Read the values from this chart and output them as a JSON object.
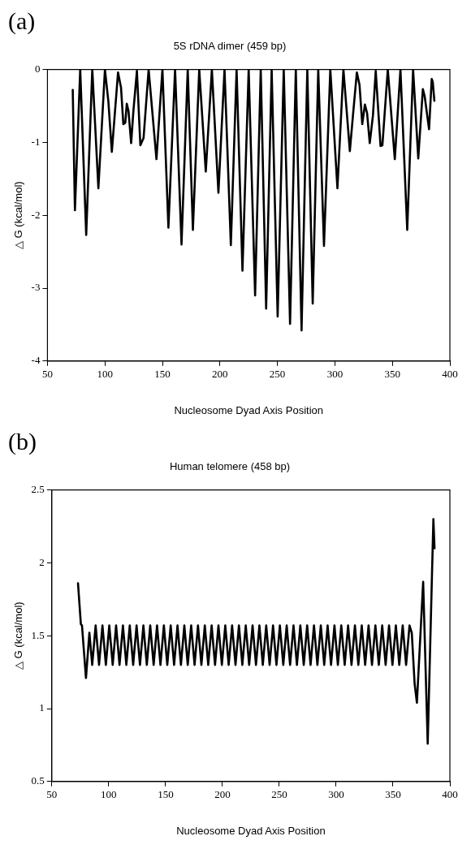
{
  "chart_data": [
    {
      "type": "line",
      "title": "5S rDNA dimer (459 bp)",
      "xlabel": "Nucleosome Dyad Axis Position",
      "ylabel": "△ G (kcal/mol)",
      "annotations": [
        "(a)"
      ],
      "xlim": [
        50,
        400
      ],
      "xticks": [
        50,
        100,
        150,
        200,
        250,
        300,
        350,
        400
      ],
      "ylim": [
        -4,
        0
      ],
      "yticks": [
        -4,
        -3,
        -2,
        -1,
        0
      ],
      "grid": false,
      "legend": false,
      "marker": "none",
      "line_style": "solid",
      "x": [
        72,
        73.9,
        78.5,
        83.7,
        89,
        94.3,
        100,
        103,
        106,
        111.4,
        114,
        116,
        117.7,
        119,
        120.5,
        122.8,
        124.7,
        127.8,
        130.8,
        133.6,
        138,
        144.8,
        150,
        155.2,
        161,
        166.6,
        172,
        176.5,
        182,
        187.7,
        193,
        198.7,
        204,
        209.5,
        214.5,
        219.6,
        225,
        230.6,
        235.5,
        240.2,
        245,
        250.2,
        255.5,
        261,
        266,
        271,
        276,
        280.7,
        285.5,
        290.5,
        296,
        302.2,
        307.4,
        313,
        315.6,
        319.1,
        321.4,
        323.8,
        326.1,
        328,
        330.3,
        333.1,
        335.5,
        339.7,
        341.3,
        346,
        352.1,
        357,
        362.9,
        368,
        372.5,
        376.5,
        378.1,
        381.9,
        384.2,
        385.1,
        386.5
      ],
      "series": [
        {
          "color": "#000000",
          "values": [
            -0.28,
            -1.93,
            0,
            -2.27,
            0,
            -1.63,
            0,
            -0.44,
            -1.13,
            -0.04,
            -0.25,
            -0.75,
            -0.73,
            -0.47,
            -0.57,
            -1.01,
            -0.58,
            -0.02,
            -1.04,
            -0.94,
            0,
            -1.23,
            0,
            -2.17,
            0,
            -2.4,
            0,
            -2.2,
            0,
            -1.4,
            0,
            -1.69,
            0,
            -2.41,
            0,
            -2.76,
            0,
            -3.1,
            0,
            -3.28,
            0,
            -3.39,
            0,
            -3.49,
            0,
            -3.58,
            0,
            -3.21,
            0,
            -2.42,
            0,
            -1.63,
            0,
            -1.12,
            -0.65,
            -0.04,
            -0.21,
            -0.75,
            -0.48,
            -0.6,
            -1.01,
            -0.63,
            -0.02,
            -1.05,
            -1.04,
            0,
            -1.23,
            0,
            -2.2,
            0,
            -1.22,
            -0.27,
            -0.37,
            -0.82,
            -0.13,
            -0.17,
            -0.43
          ]
        }
      ]
    },
    {
      "type": "line",
      "title": "Human telomere (458 bp)",
      "xlabel": "Nucleosome Dyad Axis Position",
      "ylabel": "△ G (kcal/mol)",
      "annotations": [
        "(b)"
      ],
      "xlim": [
        50,
        400
      ],
      "xticks": [
        50,
        100,
        150,
        200,
        250,
        300,
        350,
        400
      ],
      "ylim": [
        0.5,
        2.5
      ],
      "yticks": [
        0.5,
        1,
        1.5,
        2,
        2.5
      ],
      "grid": false,
      "legend": false,
      "marker": "none",
      "line_style": "solid",
      "x": [
        73,
        75.5,
        76.5,
        80,
        83,
        85.5,
        88.5,
        91.5,
        94.5,
        97.5,
        100.5,
        103.5,
        106.5,
        109.5,
        112.5,
        115.5,
        118.5,
        121.5,
        124.5,
        127.5,
        130.5,
        133.5,
        136.5,
        139.5,
        142.5,
        145.5,
        148.5,
        151.5,
        154.5,
        157.5,
        160.5,
        163.5,
        166.5,
        169.5,
        172.5,
        175.5,
        178.5,
        181.5,
        184.5,
        187.5,
        190.5,
        193.5,
        196.5,
        199.5,
        202.5,
        205.5,
        208.5,
        211.5,
        214.5,
        217.5,
        220.5,
        223.5,
        226.5,
        229.5,
        232.5,
        235.5,
        238.5,
        241.5,
        244.5,
        247.5,
        250.5,
        253.5,
        256.5,
        259.5,
        262.5,
        265.5,
        268.5,
        271.5,
        274.5,
        277.5,
        280.5,
        283.5,
        286.5,
        289.5,
        292.5,
        295.5,
        298.5,
        301.5,
        304.5,
        307.5,
        310.5,
        313.5,
        316.5,
        319.5,
        322.5,
        325.5,
        328.5,
        331.5,
        334.5,
        337.5,
        340.5,
        343.5,
        346.5,
        349.5,
        352.5,
        355.5,
        358.5,
        361.5,
        364.5,
        366.5,
        369,
        371,
        376.5,
        380.5,
        385.5,
        386.5
      ],
      "series": [
        {
          "color": "#000000",
          "values": [
            1.86,
            1.58,
            1.57,
            1.21,
            1.52,
            1.3,
            1.57,
            1.3,
            1.57,
            1.3,
            1.57,
            1.3,
            1.57,
            1.3,
            1.57,
            1.3,
            1.57,
            1.3,
            1.57,
            1.3,
            1.57,
            1.3,
            1.57,
            1.3,
            1.57,
            1.3,
            1.57,
            1.3,
            1.57,
            1.3,
            1.57,
            1.3,
            1.57,
            1.3,
            1.57,
            1.3,
            1.57,
            1.3,
            1.57,
            1.3,
            1.57,
            1.3,
            1.57,
            1.3,
            1.57,
            1.3,
            1.57,
            1.3,
            1.57,
            1.3,
            1.57,
            1.3,
            1.57,
            1.3,
            1.57,
            1.3,
            1.57,
            1.3,
            1.57,
            1.3,
            1.57,
            1.3,
            1.57,
            1.3,
            1.57,
            1.3,
            1.57,
            1.3,
            1.57,
            1.3,
            1.57,
            1.3,
            1.57,
            1.3,
            1.57,
            1.3,
            1.57,
            1.3,
            1.57,
            1.3,
            1.57,
            1.3,
            1.57,
            1.3,
            1.57,
            1.3,
            1.57,
            1.3,
            1.57,
            1.3,
            1.57,
            1.3,
            1.57,
            1.3,
            1.57,
            1.3,
            1.57,
            1.3,
            1.57,
            1.52,
            1.17,
            1.04,
            1.87,
            0.76,
            2.3,
            2.1
          ]
        }
      ]
    }
  ]
}
